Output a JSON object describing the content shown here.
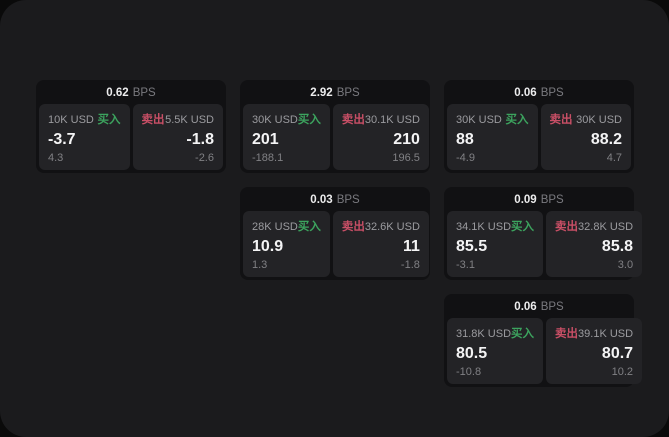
{
  "colors": {
    "green": "#3ca35e",
    "red": "#c94f66",
    "surface": "#1b1b1d",
    "card": "#111113",
    "tile": "#232326"
  },
  "labels": {
    "buy": "买入",
    "sell": "卖出",
    "unit": "BPS"
  },
  "cards": [
    {
      "bps_value": "0.62",
      "bps_unit": "BPS",
      "buy": {
        "amount": "10K USD",
        "side": "买入",
        "price": "-3.7",
        "delta": "4.3"
      },
      "sell": {
        "side": "卖出",
        "amount": "5.5K USD",
        "price": "-1.8",
        "delta": "-2.6"
      }
    },
    {
      "bps_value": "2.92",
      "bps_unit": "BPS",
      "buy": {
        "amount": "30K USD",
        "side": "买入",
        "price": "201",
        "delta": "-188.1"
      },
      "sell": {
        "side": "卖出",
        "amount": "30.1K USD",
        "price": "210",
        "delta": "196.5"
      }
    },
    {
      "bps_value": "0.06",
      "bps_unit": "BPS",
      "buy": {
        "amount": "30K USD",
        "side": "买入",
        "price": "88",
        "delta": "-4.9"
      },
      "sell": {
        "side": "卖出",
        "amount": "30K USD",
        "price": "88.2",
        "delta": "4.7"
      }
    },
    {
      "bps_value": "0.03",
      "bps_unit": "BPS",
      "buy": {
        "amount": "28K USD",
        "side": "买入",
        "price": "10.9",
        "delta": "1.3"
      },
      "sell": {
        "side": "卖出",
        "amount": "32.6K USD",
        "price": "11",
        "delta": "-1.8"
      }
    },
    {
      "bps_value": "0.09",
      "bps_unit": "BPS",
      "buy": {
        "amount": "34.1K USD",
        "side": "买入",
        "price": "85.5",
        "delta": "-3.1"
      },
      "sell": {
        "side": "卖出",
        "amount": "32.8K USD",
        "price": "85.8",
        "delta": "3.0"
      }
    },
    {
      "bps_value": "0.06",
      "bps_unit": "BPS",
      "buy": {
        "amount": "31.8K USD",
        "side": "买入",
        "price": "80.5",
        "delta": "-10.8"
      },
      "sell": {
        "side": "卖出",
        "amount": "39.1K USD",
        "price": "80.7",
        "delta": "10.2"
      }
    }
  ]
}
